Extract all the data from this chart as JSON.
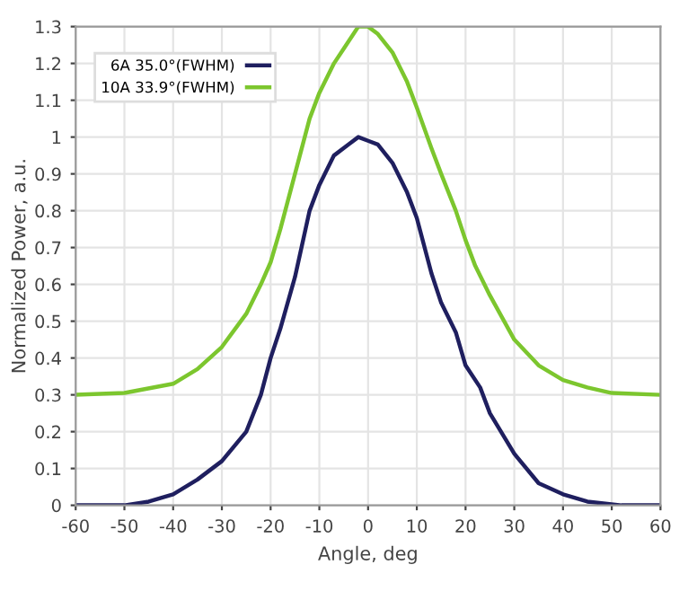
{
  "chart_data": {
    "type": "line",
    "xlabel": "Angle, deg",
    "ylabel": "Normalized Power, a.u.",
    "xlim": [
      -60,
      60
    ],
    "ylim": [
      0,
      1.3
    ],
    "xticks": [
      -60,
      -50,
      -40,
      -30,
      -20,
      -10,
      0,
      10,
      20,
      30,
      40,
      50,
      60
    ],
    "yticks": [
      0,
      0.1,
      0.2,
      0.3,
      0.4,
      0.5,
      0.6,
      0.7,
      0.8,
      0.9,
      1,
      1.1,
      1.2,
      1.3
    ],
    "grid": true,
    "legend": "top left",
    "marker": "none",
    "line_style": "solid",
    "series": [
      {
        "name": "6A 35.0°(FWHM)",
        "color": "#1f1f5f",
        "x": [
          -60,
          -50,
          -45,
          -40,
          -35,
          -30,
          -25,
          -22,
          -20,
          -18,
          -15,
          -12,
          -10,
          -7,
          -4,
          -2,
          0,
          2,
          5,
          8,
          10,
          13,
          15,
          18,
          20,
          23,
          25,
          30,
          35,
          40,
          45,
          52,
          60
        ],
        "values": [
          0,
          0,
          0.01,
          0.03,
          0.07,
          0.12,
          0.2,
          0.3,
          0.4,
          0.48,
          0.62,
          0.8,
          0.87,
          0.95,
          0.98,
          1.0,
          0.99,
          0.98,
          0.93,
          0.85,
          0.78,
          0.63,
          0.55,
          0.47,
          0.38,
          0.32,
          0.25,
          0.14,
          0.06,
          0.03,
          0.01,
          0,
          0
        ]
      },
      {
        "name": "10A 33.9°(FWHM)",
        "color": "#7cc62e",
        "x": [
          -60,
          -50,
          -40,
          -35,
          -30,
          -25,
          -22,
          -20,
          -18,
          -15,
          -12,
          -10,
          -7,
          -5,
          -2,
          0,
          2,
          5,
          8,
          10,
          13,
          15,
          18,
          20,
          22,
          25,
          30,
          35,
          40,
          45,
          50,
          60
        ],
        "values": [
          0.3,
          0.305,
          0.33,
          0.37,
          0.43,
          0.52,
          0.6,
          0.66,
          0.75,
          0.9,
          1.05,
          1.12,
          1.2,
          1.24,
          1.3,
          1.3,
          1.28,
          1.23,
          1.15,
          1.08,
          0.97,
          0.9,
          0.8,
          0.72,
          0.65,
          0.57,
          0.45,
          0.38,
          0.34,
          0.32,
          0.305,
          0.3
        ]
      }
    ]
  }
}
